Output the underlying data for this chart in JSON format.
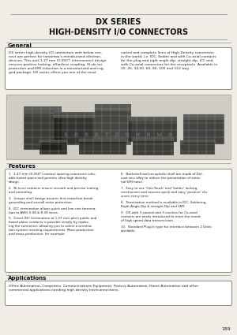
{
  "title_line1": "DX SERIES",
  "title_line2": "HIGH-DENSITY I/O CONNECTORS",
  "section_general": "General",
  "general_text_left": "DX series high-density I/O connectors with below con-\nnect are perfect for tomorrow's miniaturized electron-\ndevices. This axis 1.27 mm (0.050\") interconnect design\nensures positive locking, effortless coupling, Hi-de-tai\nprotection and EMI reduction in a miniaturized and rug-\nged package. DX series offers you one of the most",
  "general_text_right": "varied and complete lines of High-Density connectors\nin the world, i.e. IDC, Solder and with Co-axial contacts\nfor the plug and right angle dip, straight dip, ICC and\nwith Co-axial connectors for the receptacle. Available in\n20, 26, 34,50, 60, 80, 100 and 152 way.",
  "section_features": "Features",
  "features_left": [
    "1.27 mm (0.050\") contact spacing conserves valu-\nable board space and permits ultra-high density\ndesign.",
    "Bi-level contacts ensure smooth and precise mating\nand unmating.",
    "Unique shell design assures first mate/last break\ngrounding and overall noise protection.",
    "IDC termination allows quick and low cost termina-\ntion to AWG 0.08 & 8.30 wires.",
    "Direct IDC termination of 1.27 mm pitch public and\nboard plane contacts is possible simply by replac-\ning the connector, allowing you to select a termina-\ntion system meeting requirements. Mass production\nand mass production, for example."
  ],
  "features_right": [
    "Backshell and receptacle shell are made of Die-\ncast zinc alloy to reduce the penetration of exter-\nnal EMI noise.",
    "Easy to use 'One-Touch' and 'Solder' locking\nmechanism and assures quick and easy 'positive' clo-\nsures every time.",
    "Termination method is available in IDC, Soldering,\nRight Angle Dip & straight Dip and SMT.",
    "DX with 3 coaxial and 3 cavities for Co-axial\ncontacts are easily introduced to meet the needs\nof high speed data transmission.",
    "Standard Plug-In type for interface between 2 Units\navailable."
  ],
  "section_applications": "Applications",
  "applications_text": "Office Automation, Computers, Communications Equipment, Factory Automation, Home Automation and other\ncommercial applications needing high density interconnections.",
  "page_number": "189",
  "bg_color": "#f0ede6",
  "title_color": "#111111",
  "section_color": "#111111",
  "text_color": "#222222",
  "box_edge_color": "#777777",
  "line_color": "#888888"
}
